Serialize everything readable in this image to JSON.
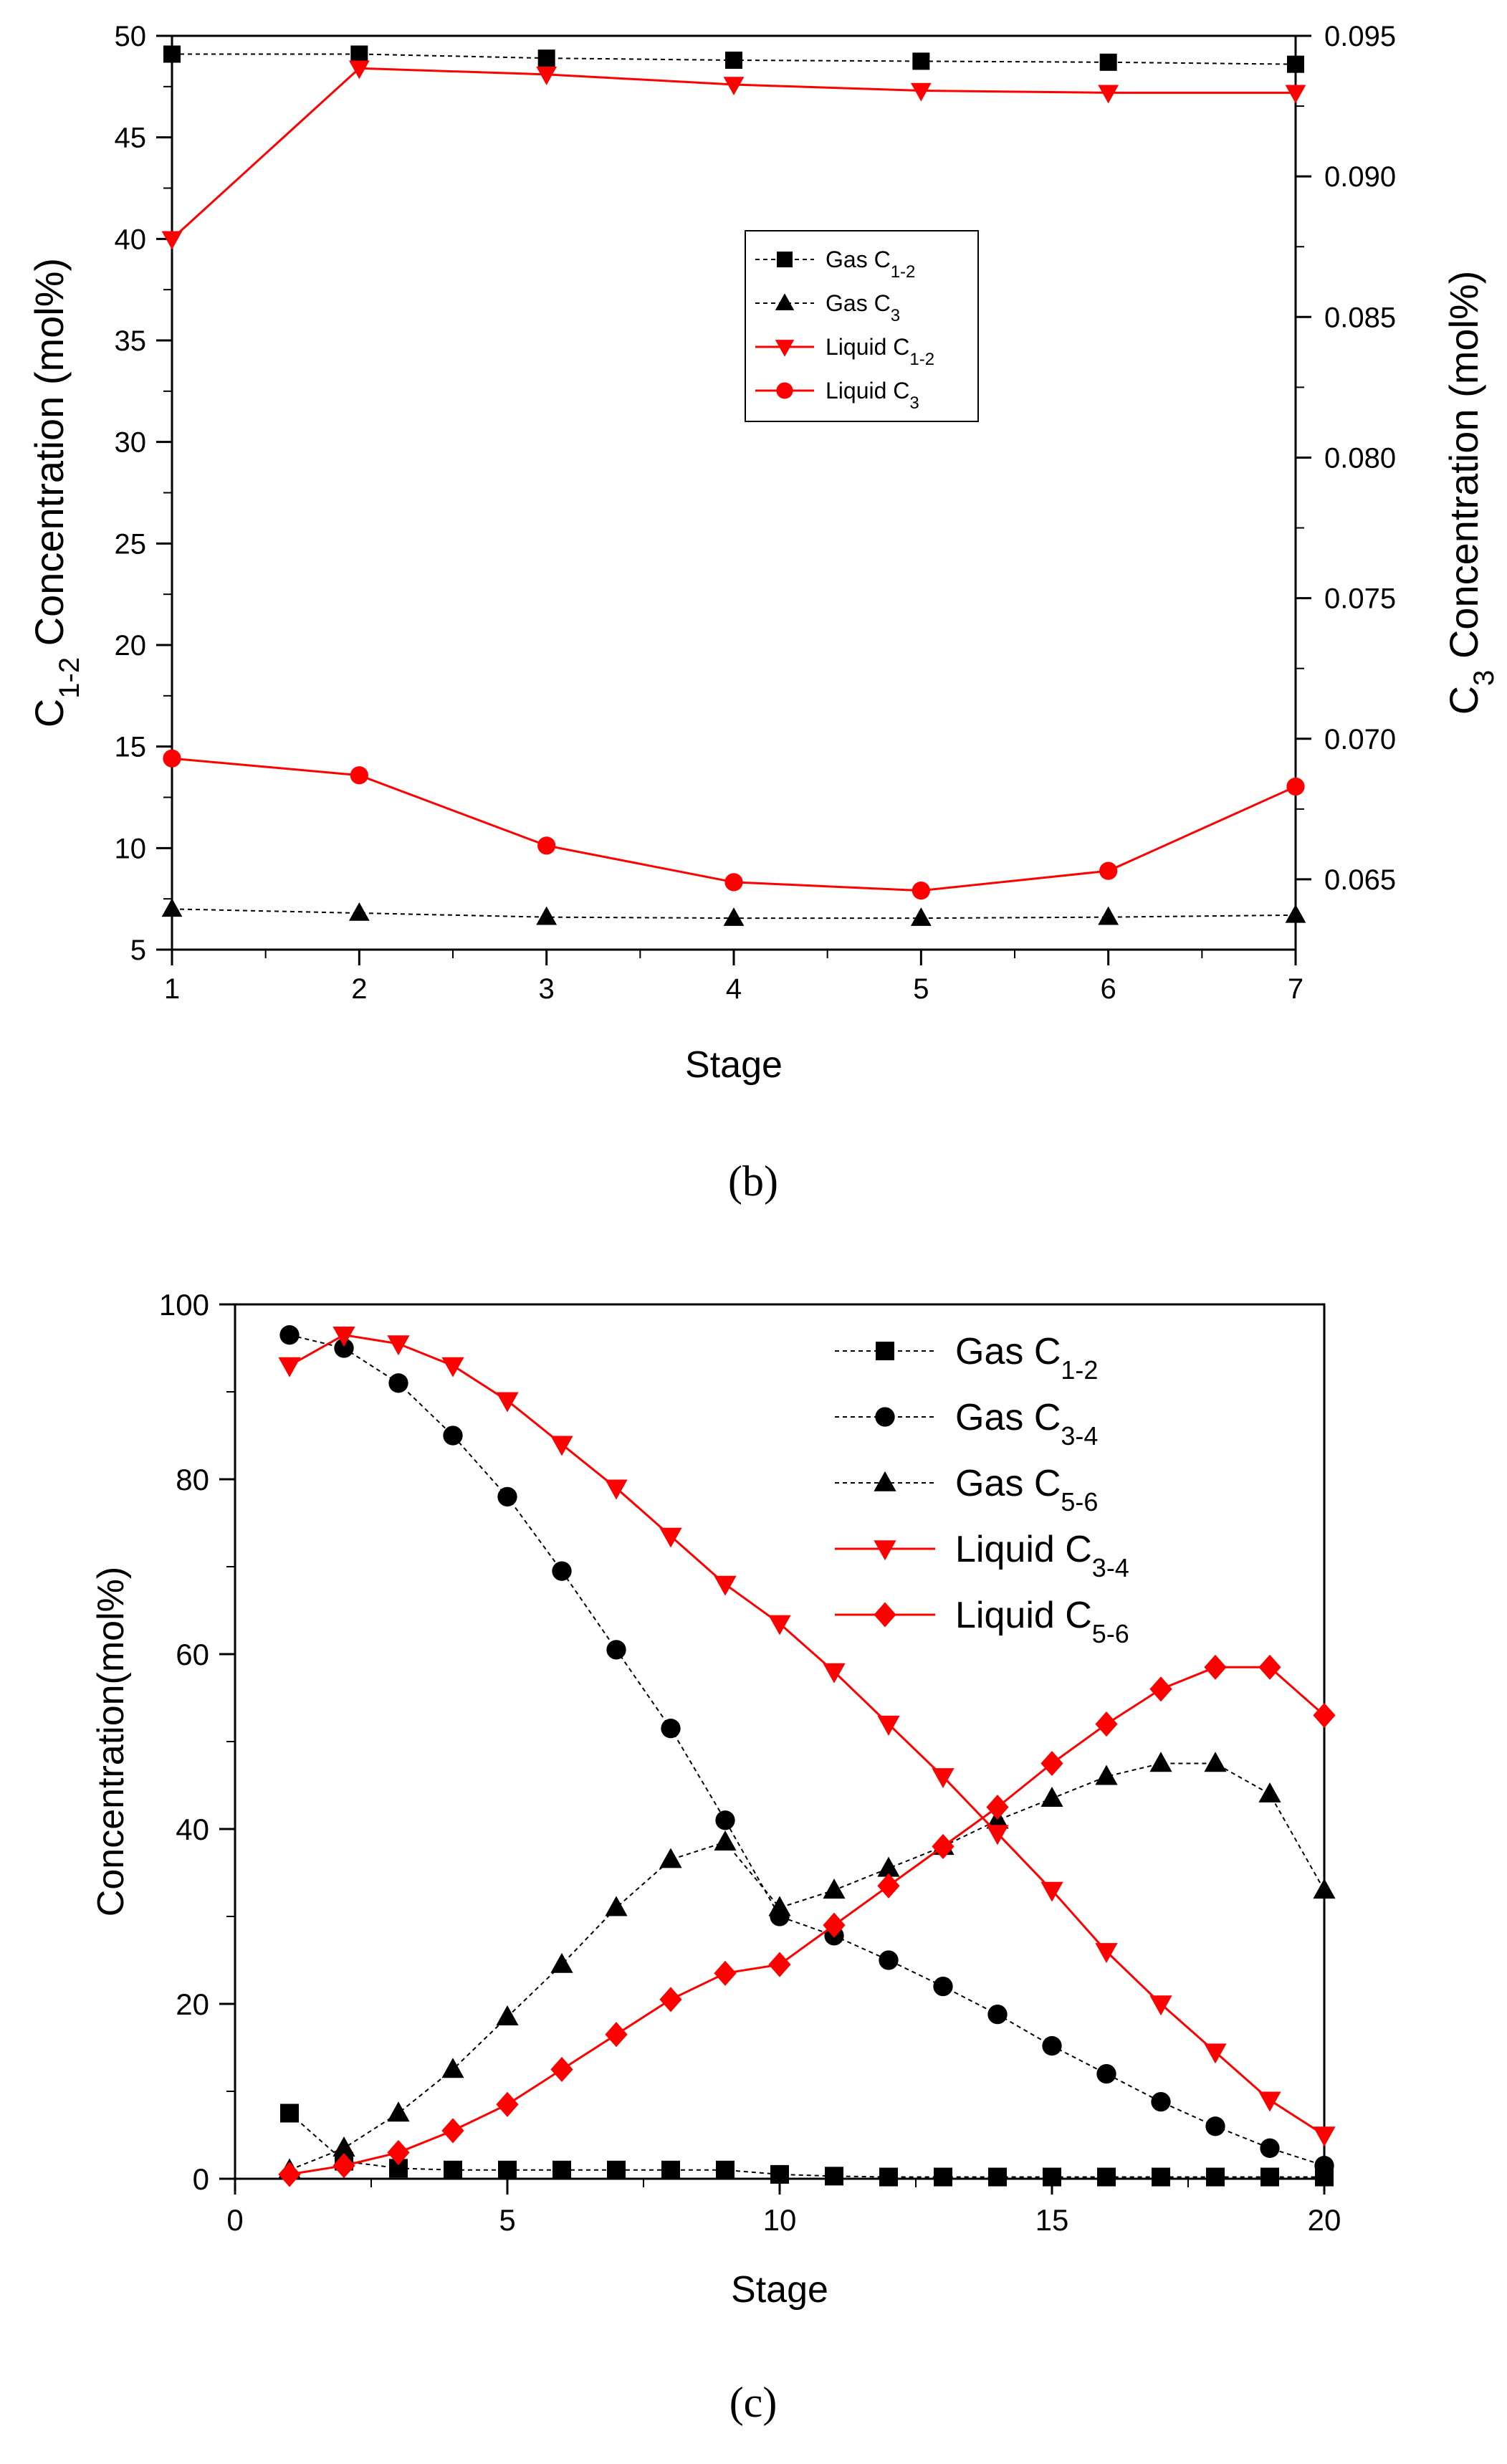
{
  "colors": {
    "gas": "#000000",
    "liquid": "#ff0000"
  },
  "chart_data": [
    {
      "panel": "(b)",
      "type": "line",
      "xlabel": "Stage",
      "ylabel": {
        "pre": "C",
        "sub": "1-2",
        "post": " Concentration (mol%)"
      },
      "ylabel_right": {
        "pre": "C",
        "sub": "3",
        "post": " Concentration (mol%)"
      },
      "xlim": [
        1,
        7
      ],
      "ylim": [
        5,
        50
      ],
      "ylim_right": [
        0.0625,
        0.095
      ],
      "xticks": [
        "1",
        "2",
        "3",
        "4",
        "5",
        "6",
        "7"
      ],
      "yticks": [
        "5",
        "10",
        "15",
        "20",
        "25",
        "30",
        "35",
        "40",
        "45",
        "50"
      ],
      "yticks_right": [
        "0.065",
        "0.070",
        "0.075",
        "0.080",
        "0.085",
        "0.090",
        "0.095"
      ],
      "legend_position": "top-center",
      "x": [
        1,
        2,
        3,
        4,
        5,
        6,
        7
      ],
      "series": [
        {
          "pre": "Gas C",
          "sub": "1-2",
          "axis": "left",
          "style": "dashed",
          "color": "#000000",
          "marker": "square",
          "values": [
            49.1,
            49.1,
            48.9,
            48.8,
            48.75,
            48.7,
            48.6
          ]
        },
        {
          "pre": "Gas C",
          "sub": "3",
          "axis": "left",
          "style": "dashed",
          "color": "#000000",
          "marker": "triangle-up",
          "values": [
            7.0,
            6.8,
            6.6,
            6.55,
            6.55,
            6.6,
            6.7
          ]
        },
        {
          "pre": "Liquid C",
          "sub": "1-2",
          "axis": "left",
          "style": "solid",
          "color": "#ff0000",
          "marker": "triangle-down",
          "values": [
            40.0,
            48.4,
            48.1,
            47.6,
            47.3,
            47.2,
            47.2
          ]
        },
        {
          "pre": "Liquid C",
          "sub": "3",
          "axis": "right",
          "style": "solid",
          "color": "#ff0000",
          "marker": "circle",
          "values": [
            0.0693,
            0.0687,
            0.0662,
            0.0649,
            0.0646,
            0.0653,
            0.0683
          ]
        }
      ]
    },
    {
      "panel": "(c)",
      "type": "line",
      "xlabel": "Stage",
      "ylabel": {
        "pre": "Concentration(mol%)",
        "sub": "",
        "post": ""
      },
      "xlim": [
        0,
        20
      ],
      "ylim": [
        0,
        100
      ],
      "xticks": [
        "0",
        "5",
        "10",
        "15",
        "20"
      ],
      "yticks": [
        "0",
        "20",
        "40",
        "60",
        "80",
        "100"
      ],
      "legend_position": "top-right",
      "x": [
        1,
        2,
        3,
        4,
        5,
        6,
        7,
        8,
        9,
        10,
        11,
        12,
        13,
        14,
        15,
        16,
        17,
        18,
        19,
        20
      ],
      "series": [
        {
          "pre": "Gas C",
          "sub": "1-2",
          "style": "dashed",
          "color": "#000000",
          "marker": "square",
          "values": [
            7.5,
            2.0,
            1.2,
            1.0,
            1.0,
            1.0,
            1.0,
            1.0,
            1.0,
            0.5,
            0.3,
            0.2,
            0.2,
            0.2,
            0.2,
            0.2,
            0.2,
            0.2,
            0.2,
            0.2
          ]
        },
        {
          "pre": "Gas C",
          "sub": "3-4",
          "style": "dashed",
          "color": "#000000",
          "marker": "circle",
          "values": [
            96.5,
            95.0,
            91.0,
            85.0,
            78.0,
            69.5,
            60.5,
            51.5,
            41.0,
            30.0,
            27.8,
            25.0,
            22.0,
            18.8,
            15.2,
            12.0,
            8.8,
            6.0,
            3.5,
            1.5
          ]
        },
        {
          "pre": "Gas C",
          "sub": "5-6",
          "style": "dashed",
          "color": "#000000",
          "marker": "triangle-up",
          "values": [
            1.0,
            3.5,
            7.5,
            12.5,
            18.5,
            24.5,
            31.0,
            36.5,
            38.5,
            31.0,
            33.0,
            35.5,
            38.0,
            41.0,
            43.5,
            46.0,
            47.5,
            47.5,
            44.0,
            33.0
          ]
        },
        {
          "pre": "Liquid C",
          "sub": "3-4",
          "style": "solid",
          "color": "#ff0000",
          "marker": "triangle-down",
          "values": [
            93.0,
            96.5,
            95.5,
            93.0,
            89.0,
            84.0,
            79.0,
            73.5,
            68.0,
            63.5,
            58.0,
            52.0,
            46.0,
            39.5,
            33.0,
            26.0,
            20.0,
            14.5,
            9.0,
            5.0
          ]
        },
        {
          "pre": "Liquid C",
          "sub": "5-6",
          "style": "solid",
          "color": "#ff0000",
          "marker": "diamond",
          "values": [
            0.5,
            1.5,
            3.0,
            5.5,
            8.5,
            12.5,
            16.5,
            20.5,
            23.5,
            24.5,
            29.0,
            33.5,
            38.0,
            42.5,
            47.5,
            52.0,
            56.0,
            58.5,
            58.5,
            53.0
          ]
        }
      ]
    }
  ]
}
